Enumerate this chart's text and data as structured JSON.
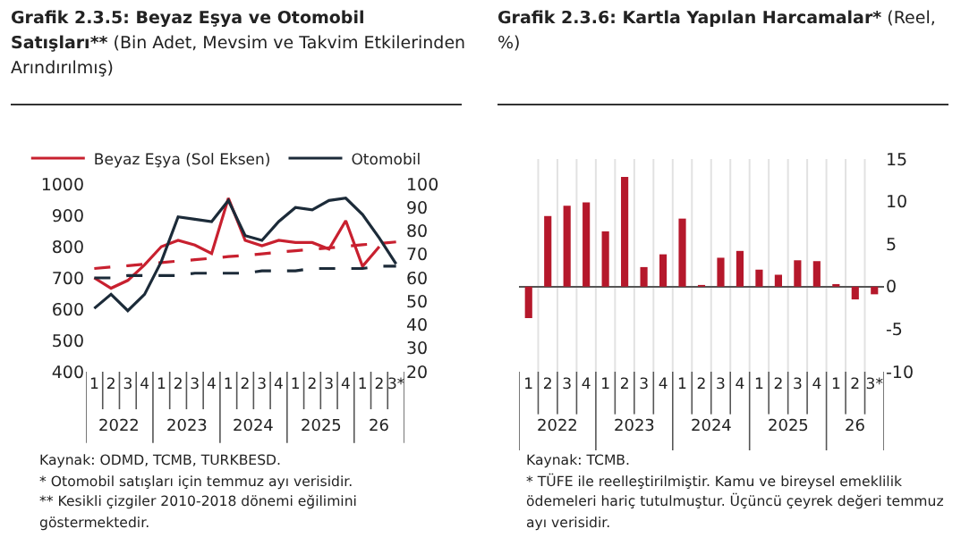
{
  "chart_data": [
    {
      "type": "line",
      "title": "Grafik 2.3.5: Beyaz Eşya ve Otomobil Satışları**",
      "subtitle": "(Bin Adet, Mevsim ve Takvim Etkilerinden Arındırılmış)",
      "categories": [
        "1",
        "2",
        "3",
        "4",
        "1",
        "2",
        "3",
        "4",
        "1",
        "2",
        "3",
        "4",
        "1",
        "2",
        "3",
        "4",
        "1",
        "2",
        "3*"
      ],
      "series": [
        {
          "name": "Beyaz Eşya (Sol Eksen)",
          "color": "#c8202f",
          "values": [
            700,
            667,
            692,
            742,
            800,
            820,
            805,
            778,
            955,
            820,
            803,
            820,
            813,
            813,
            792,
            883,
            737,
            800,
            null
          ]
        },
        {
          "name": "Otomobil",
          "color": "#1c2b39",
          "axis": "y2",
          "values": [
            47,
            53,
            46,
            53,
            67,
            86,
            85,
            84,
            93,
            78,
            76,
            84,
            90,
            89,
            93,
            94,
            87,
            77,
            66
          ]
        },
        {
          "color": "#c8202f",
          "line_style": "dashed",
          "values": [
            730,
            735,
            739,
            744,
            749,
            754,
            758,
            763,
            768,
            772,
            777,
            782,
            787,
            791,
            796,
            801,
            806,
            810,
            815
          ]
        },
        {
          "color": "#1c2b39",
          "line_style": "dashed",
          "axis": "y2",
          "values": [
            60,
            60,
            61,
            61,
            61,
            61,
            62,
            62,
            62,
            62,
            63,
            63,
            63,
            64,
            64,
            64,
            64,
            65,
            65
          ]
        }
      ],
      "ylim": [
        400,
        1000
      ],
      "yticks": [
        400,
        500,
        600,
        700,
        800,
        900,
        1000
      ],
      "y2lim": [
        20,
        100
      ],
      "y2ticks": [
        20,
        30,
        40,
        50,
        60,
        70,
        80,
        90,
        100
      ],
      "line_style": "solid",
      "marker": "none",
      "grid": false,
      "legend": "top",
      "annotations": [
        {
          "text": "2022"
        },
        {
          "text": "2023"
        },
        {
          "text": "2024"
        },
        {
          "text": "2025"
        },
        {
          "text": "26"
        },
        "Kaynak: ODMD, TCMB, TURKBESD.",
        "* Otomobil satışları için temmuz ayı verisidir.",
        "** Kesikli çizgiler 2010-2018 dönemi eğilimini göstermektedir."
      ]
    },
    {
      "type": "bar",
      "title": "Grafik 2.3.6: Kartla Yapılan Harcamalar*",
      "subtitle": "(Reel, %)",
      "categories": [
        "1",
        "2",
        "3",
        "4",
        "1",
        "2",
        "3",
        "4",
        "1",
        "2",
        "3",
        "4",
        "1",
        "2",
        "3",
        "4",
        "1",
        "2",
        "3*"
      ],
      "values": [
        -3.7,
        8.3,
        9.5,
        9.9,
        6.5,
        12.9,
        2.3,
        3.8,
        8.0,
        0.2,
        3.4,
        4.2,
        2.0,
        1.4,
        3.1,
        3.0,
        0.3,
        -1.5,
        -0.9
      ],
      "color": "#b5182b",
      "ylim": [
        -10,
        15
      ],
      "yticks": [
        -10,
        -5,
        0,
        5,
        10,
        15
      ],
      "grid": "x",
      "legend": false,
      "annotations": [
        {
          "text": "2022"
        },
        {
          "text": "2023"
        },
        {
          "text": "2024"
        },
        {
          "text": "2025"
        },
        {
          "text": "26"
        },
        "Kaynak: TCMB.",
        "* TÜFE ile reelleştirilmiştir. Kamu ve bireysel emeklilik ödemeleri hariç tutulmuştur. Üçüncü çeyrek değeri temmuz ayı verisidir."
      ]
    }
  ]
}
